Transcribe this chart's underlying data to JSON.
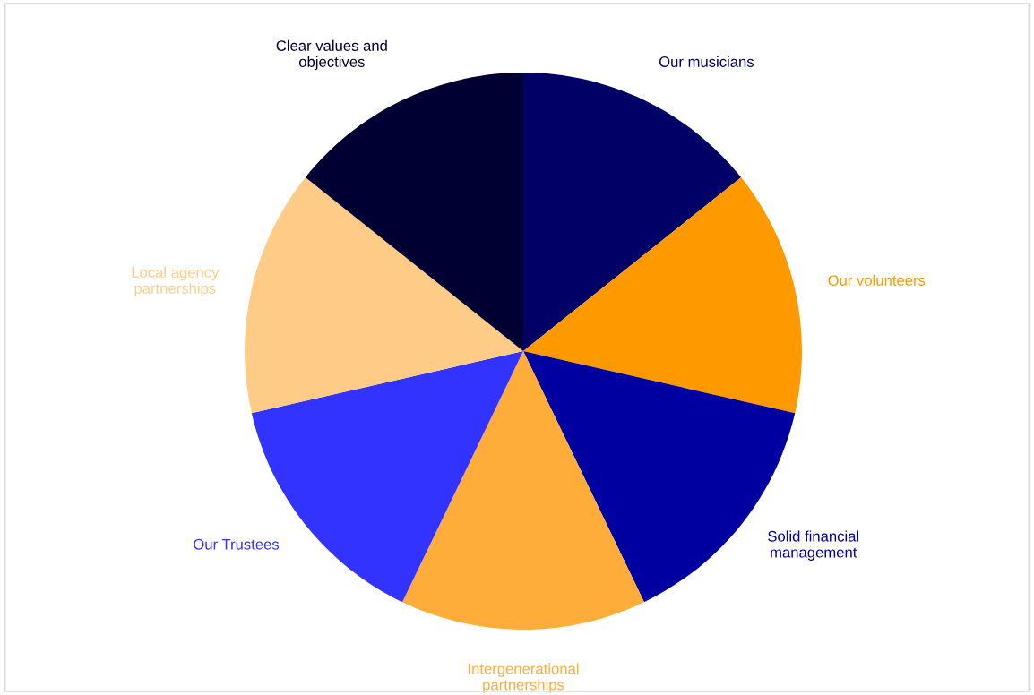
{
  "chart_data": {
    "type": "pie",
    "categories": [
      "Our musicians",
      "Our volunteers",
      "Solid financial\nmanagement",
      "Intergenerational\npartnerships",
      "Our Trustees",
      "Local agency\npartnerships",
      "Clear values and\nobjectives"
    ],
    "values": [
      14.2857,
      14.2857,
      14.2857,
      14.2857,
      14.2857,
      14.2857,
      14.2857
    ],
    "colors": [
      "#000066",
      "#ff9900",
      "#0000a0",
      "#ffad3a",
      "#3333ff",
      "#ffcc88",
      "#000033"
    ],
    "legend": false
  }
}
